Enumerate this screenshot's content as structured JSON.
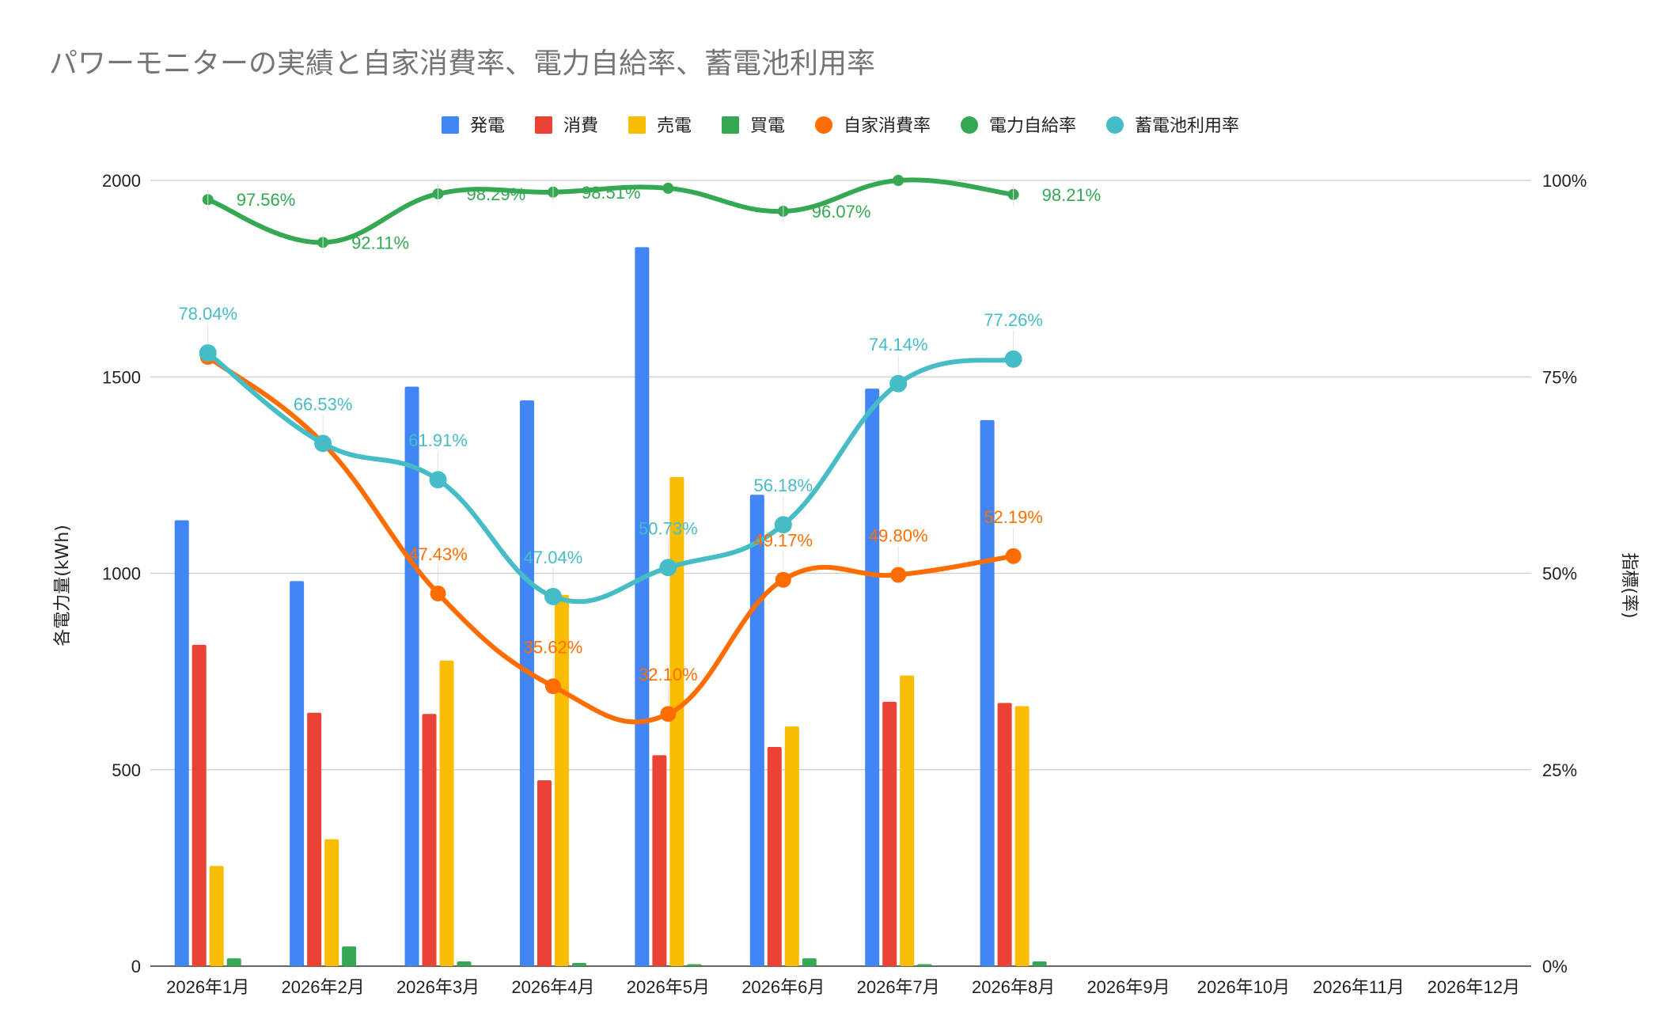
{
  "chart_data": {
    "type": "bar",
    "title": "パワーモニターの実績と自家消費率、電力自給率、蓄電池利用率",
    "xlabel": "",
    "ylabel": "各電力量(kWh)",
    "y2label": "指標(率)",
    "ylim": [
      0,
      2000
    ],
    "y2lim": [
      0,
      1
    ],
    "yticks": [
      "0",
      "500",
      "1000",
      "1500",
      "2000"
    ],
    "y2ticks": [
      "0%",
      "25%",
      "50%",
      "75%",
      "100%"
    ],
    "grid": true,
    "legend_position": "top",
    "categories": [
      "2026年1月",
      "2026年2月",
      "2026年3月",
      "2026年4月",
      "2026年5月",
      "2026年6月",
      "2026年7月",
      "2026年8月",
      "2026年9月",
      "2026年10月",
      "2026年11月",
      "2026年12月"
    ],
    "bar_series": [
      {
        "name": "発電",
        "color": "#4285F4",
        "values": [
          1135,
          980,
          1475,
          1440,
          1830,
          1200,
          1470,
          1390,
          null,
          null,
          null,
          null
        ]
      },
      {
        "name": "消費",
        "color": "#EA4335",
        "values": [
          818,
          645,
          642,
          473,
          537,
          558,
          673,
          670,
          null,
          null,
          null,
          null
        ]
      },
      {
        "name": "売電",
        "color": "#FBBC04",
        "values": [
          255,
          323,
          778,
          945,
          1245,
          610,
          740,
          662,
          null,
          null,
          null,
          null
        ]
      },
      {
        "name": "買電",
        "color": "#34A853",
        "values": [
          20,
          50,
          12,
          8,
          5,
          20,
          5,
          12,
          null,
          null,
          null,
          null
        ]
      }
    ],
    "line_series": [
      {
        "name": "自家消費率",
        "color": "#FF6D01",
        "values": [
          0.7754,
          0.6656,
          0.4743,
          0.3562,
          0.321,
          0.4917,
          0.498,
          0.5219,
          null,
          null,
          null,
          null
        ],
        "labels": [
          "",
          "",
          "47.43%",
          "35.62%",
          "32.10%",
          "49.17%",
          "49.80%",
          "52.19%",
          "",
          "",
          "",
          ""
        ]
      },
      {
        "name": "電力自給率",
        "color": "#34A853",
        "values": [
          0.9756,
          0.9211,
          0.9829,
          0.9851,
          0.99,
          0.9607,
          1.0,
          0.9821,
          null,
          null,
          null,
          null
        ],
        "labels": [
          "97.56%",
          "92.11%",
          "98.29%",
          "98.51%",
          "",
          "96.07%",
          "",
          "98.21%",
          "",
          "",
          "",
          ""
        ]
      },
      {
        "name": "蓄電池利用率",
        "color": "#46BDC6",
        "values": [
          0.7804,
          0.6653,
          0.6191,
          0.4704,
          0.5073,
          0.5618,
          0.7414,
          0.7726,
          null,
          null,
          null,
          null
        ],
        "labels": [
          "78.04%",
          "66.53%",
          "61.91%",
          "47.04%",
          "50.73%",
          "56.18%",
          "74.14%",
          "77.26%",
          "",
          "",
          "",
          ""
        ]
      }
    ]
  }
}
